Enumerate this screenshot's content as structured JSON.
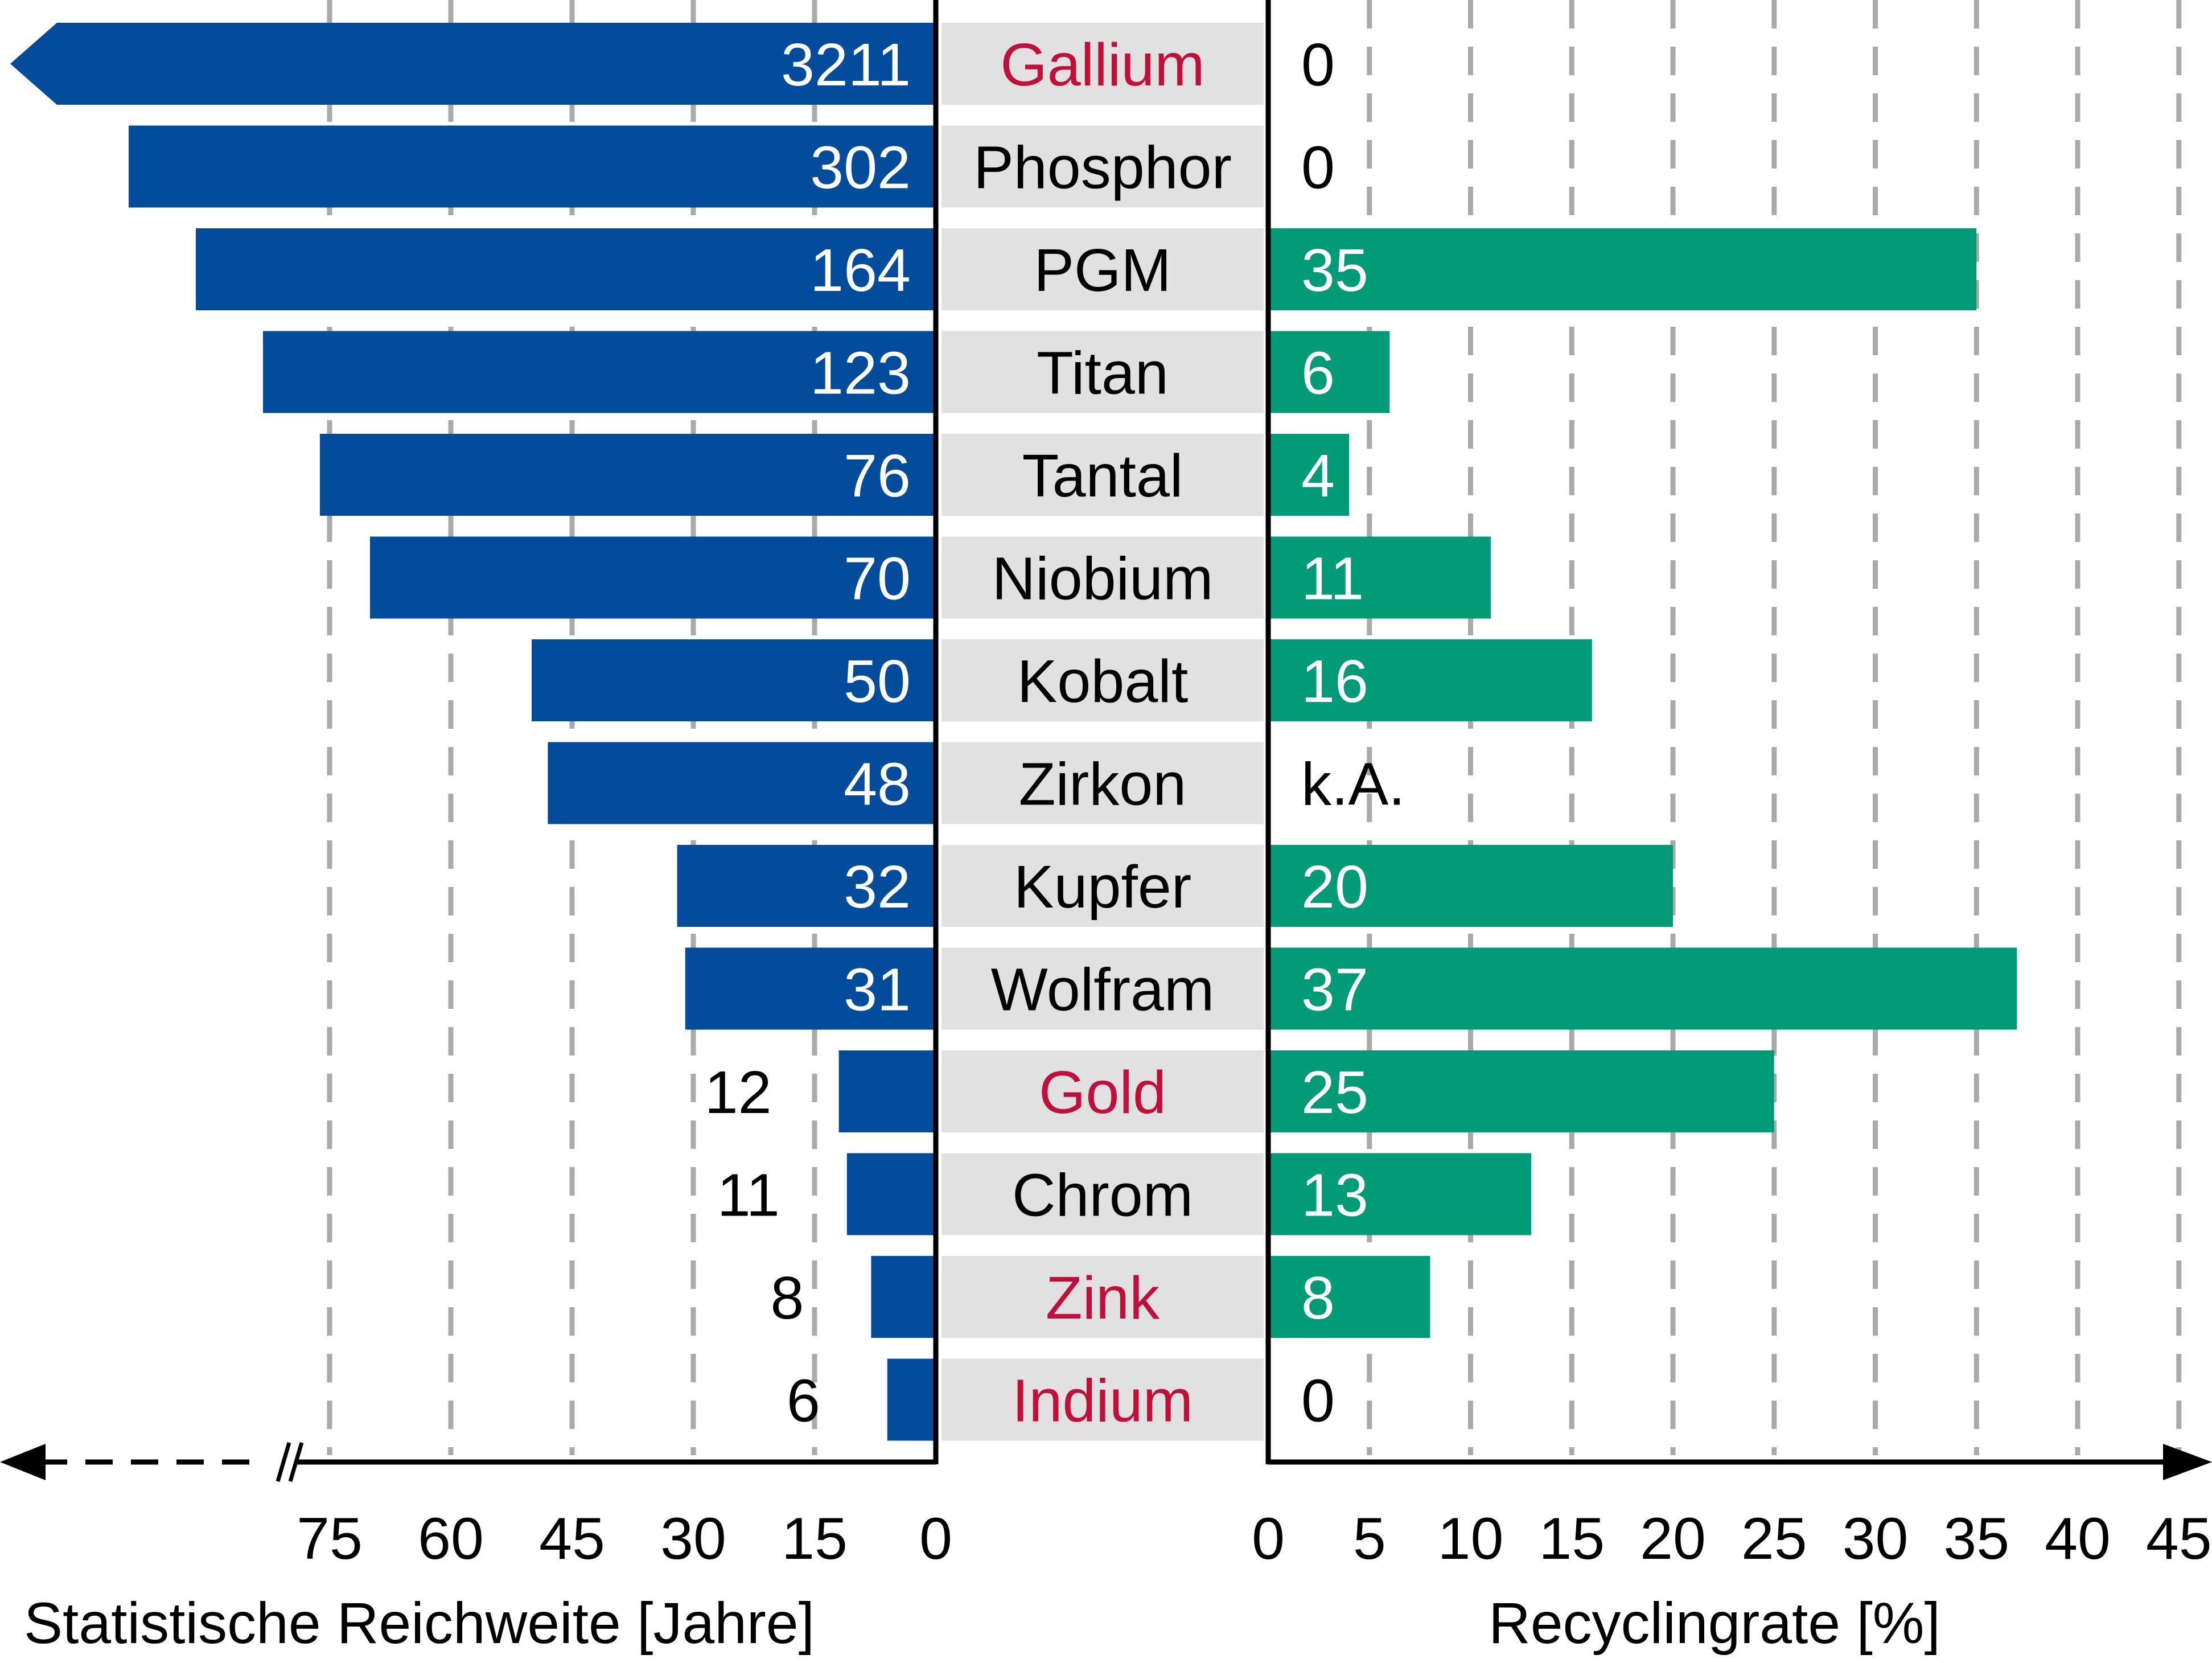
{
  "chart_data": [
    {
      "type": "bar",
      "orientation": "horizontal",
      "direction": "right-to-left",
      "categories": [
        "Gallium",
        "Phosphor",
        "PGM",
        "Titan",
        "Tantal",
        "Niobium",
        "Kobalt",
        "Zirkon",
        "Kupfer",
        "Wolfram",
        "Gold",
        "Chrom",
        "Zink",
        "Indium"
      ],
      "values": [
        3211,
        302,
        164,
        123,
        76,
        70,
        50,
        48,
        32,
        31,
        12,
        11,
        8,
        6
      ],
      "labels": [
        "3211",
        "302",
        "164",
        "123",
        "76",
        "70",
        "50",
        "48",
        "32",
        "31",
        "12",
        "11",
        "8",
        "6"
      ],
      "xlabel": "Statistische Reichweite [Jahre]",
      "ticks": [
        "75",
        "60",
        "45",
        "30",
        "15",
        "0"
      ],
      "axis_break": "broken axis beyond 75 (values above 75 are not drawn to scale)",
      "grid": "dashed vertical",
      "bar_color": "#034C9C"
    },
    {
      "type": "bar",
      "orientation": "horizontal",
      "direction": "left-to-right",
      "categories": [
        "Gallium",
        "Phosphor",
        "PGM",
        "Titan",
        "Tantal",
        "Niobium",
        "Kobalt",
        "Zirkon",
        "Kupfer",
        "Wolfram",
        "Gold",
        "Chrom",
        "Zink",
        "Indium"
      ],
      "values": [
        0,
        0,
        35,
        6,
        4,
        11,
        16,
        null,
        20,
        37,
        25,
        13,
        8,
        0
      ],
      "labels": [
        "0",
        "0",
        "35",
        "6",
        "4",
        "11",
        "16",
        "k.A.",
        "20",
        "37",
        "25",
        "13",
        "8",
        "0"
      ],
      "xlabel": "Recyclingrate [%]",
      "ticks": [
        "0",
        "5",
        "10",
        "15",
        "20",
        "25",
        "30",
        "35",
        "40",
        "45"
      ],
      "xlim": [
        0,
        45
      ],
      "grid": "dashed vertical",
      "bar_color": "#029B77"
    }
  ],
  "highlighted_categories": [
    "Gallium",
    "Gold",
    "Zink",
    "Indium"
  ],
  "colors": {
    "highlight_text": "#C0103A",
    "label_band": "#E1E1E1",
    "grid": "#AAAAAA",
    "axis": "#000000"
  }
}
